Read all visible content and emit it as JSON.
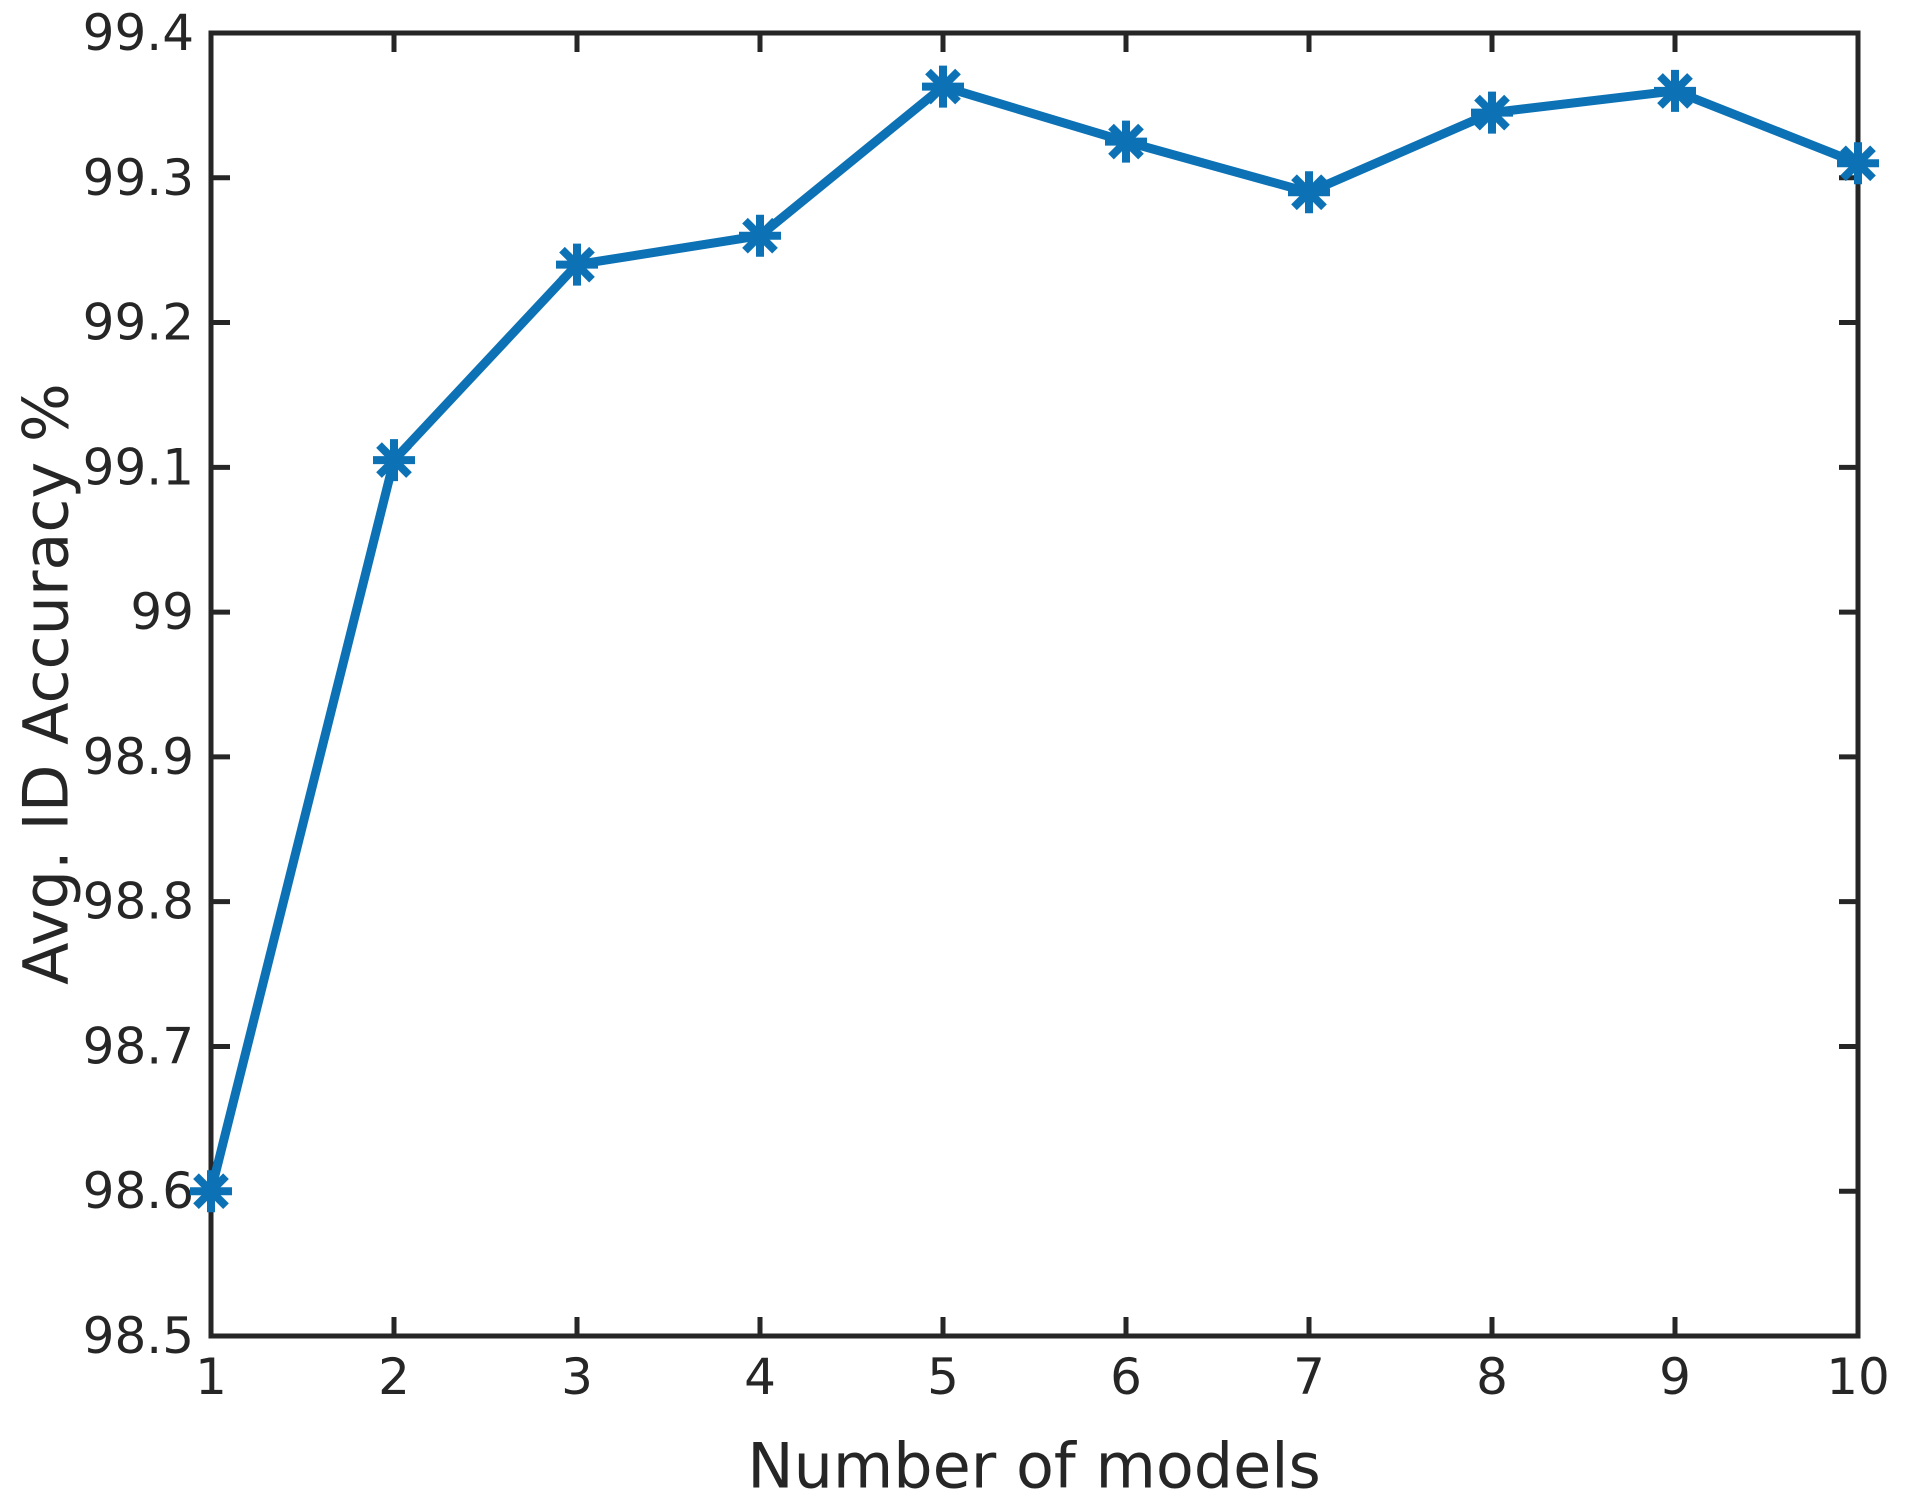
{
  "chart_data": {
    "type": "line",
    "title": "",
    "xlabel": "Number of models",
    "ylabel": "Avg. ID Accuracy %",
    "x": [
      1,
      2,
      3,
      4,
      5,
      6,
      7,
      8,
      9,
      10
    ],
    "series": [
      {
        "name": "Avg. ID Accuracy %",
        "values": [
          98.6,
          99.105,
          99.24,
          99.26,
          99.363,
          99.325,
          99.29,
          99.345,
          99.36,
          99.31
        ]
      }
    ],
    "xlim": [
      1,
      10
    ],
    "ylim": [
      98.5,
      99.4
    ],
    "xtick_values": [
      1,
      2,
      3,
      4,
      5,
      6,
      7,
      8,
      9,
      10
    ],
    "xtick_labels": [
      "1",
      "2",
      "3",
      "4",
      "5",
      "6",
      "7",
      "8",
      "9",
      "10"
    ],
    "ytick_values": [
      98.5,
      98.6,
      98.7,
      98.8,
      98.9,
      99.0,
      99.1,
      99.2,
      99.3,
      99.4
    ],
    "ytick_labels": [
      "98.5",
      "98.6",
      "98.7",
      "98.8",
      "98.9",
      "99",
      "99.1",
      "99.2",
      "99.3",
      "99.4"
    ],
    "grid": false,
    "box": true,
    "ticks_direction": "in",
    "legend_position": "none",
    "marker": "asterisk",
    "line_color": "#0c72b5",
    "axis_color": "#262626",
    "text_color": "#262626",
    "background_color": "#ffffff"
  }
}
